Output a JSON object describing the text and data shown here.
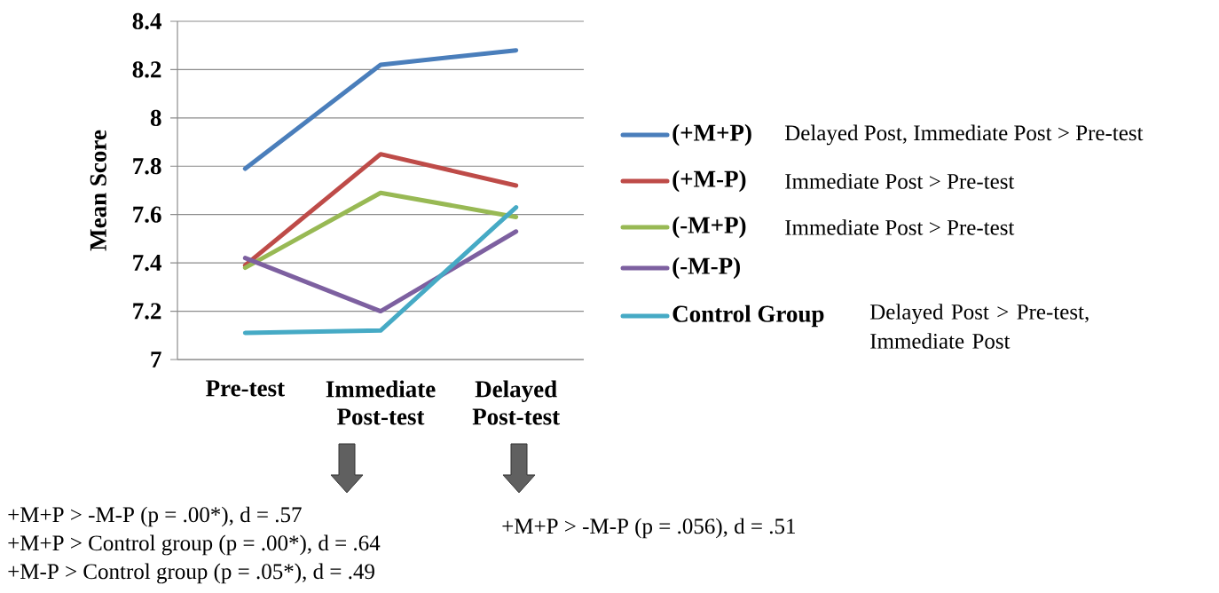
{
  "chart_data": {
    "type": "line",
    "ylabel": "Mean Score",
    "categories": [
      "Pre-test",
      "Immediate Post-test",
      "Delayed Post-test"
    ],
    "series": [
      {
        "name": "(+M+P)",
        "color": "#4a7ebb",
        "values": [
          7.79,
          8.22,
          8.28
        ]
      },
      {
        "name": "(+M-P)",
        "color": "#be4b48",
        "values": [
          7.39,
          7.85,
          7.72
        ]
      },
      {
        "name": "(-M+P)",
        "color": "#98b954",
        "values": [
          7.38,
          7.69,
          7.59
        ]
      },
      {
        "name": "(-M-P)",
        "color": "#7d60a0",
        "values": [
          7.42,
          7.2,
          7.53
        ]
      },
      {
        "name": "Control Group",
        "color": "#46aac5",
        "values": [
          7.11,
          7.12,
          7.63
        ]
      }
    ],
    "ylim": [
      7,
      8.4
    ],
    "yticks": [
      7,
      7.2,
      7.4,
      7.6,
      7.8,
      8,
      8.2,
      8.4
    ],
    "grid": "y",
    "legend": "right",
    "annotations": [
      "Delayed Post, Immediate Post > Pre-test",
      "Immediate Post > Pre-test",
      "Immediate Post > Pre-test",
      "Delayed Post > Pre-test, Immediate Post",
      "+M+P > -M-P (p = .00*), d = .57",
      "+M+P > Control group (p = .00*), d = .64",
      "+M-P > Control group (p = .05*), d = .49",
      "+M+P > -M-P (p = .056), d = .51"
    ]
  }
}
